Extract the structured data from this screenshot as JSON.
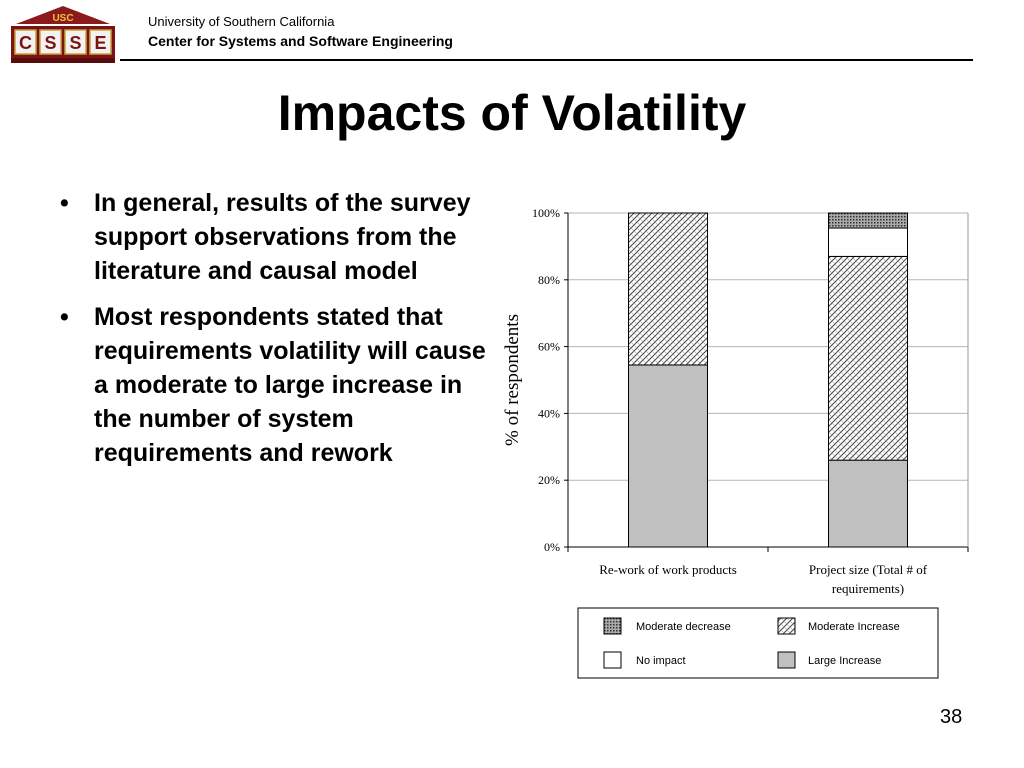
{
  "header": {
    "logo_top": "USC",
    "logo_letters": [
      "C",
      "S",
      "S",
      "E"
    ],
    "org_line1": "University of Southern California",
    "org_line2": "Center for Systems and Software Engineering"
  },
  "title": "Impacts of Volatility",
  "bullets": [
    "In general, results of the survey support observations from the literature and causal model",
    "Most respondents stated that requirements volatility will cause a moderate to large increase in the number of system requirements and rework"
  ],
  "slide_number": "38",
  "chart_data": {
    "type": "bar",
    "stacked": true,
    "ylabel": "% of respondents",
    "ylim": [
      0,
      100
    ],
    "yticks": [
      "0%",
      "20%",
      "40%",
      "60%",
      "80%",
      "100%"
    ],
    "grid": true,
    "categories": [
      [
        "Re-work of work products"
      ],
      [
        "Project size (Total # of",
        "requirements)"
      ]
    ],
    "series": [
      {
        "name": "Large Increase",
        "values": [
          54.5,
          26
        ],
        "pattern": "solid-gray"
      },
      {
        "name": "Moderate Increase",
        "values": [
          45.5,
          61
        ],
        "pattern": "diagonal-hatch"
      },
      {
        "name": "No impact",
        "values": [
          0,
          8.5
        ],
        "pattern": "white"
      },
      {
        "name": "Moderate decrease",
        "values": [
          0,
          4.5
        ],
        "pattern": "dense-dots"
      }
    ],
    "legend": {
      "position": "bottom",
      "order": [
        "Moderate decrease",
        "Moderate Increase",
        "No impact",
        "Large Increase"
      ]
    }
  }
}
